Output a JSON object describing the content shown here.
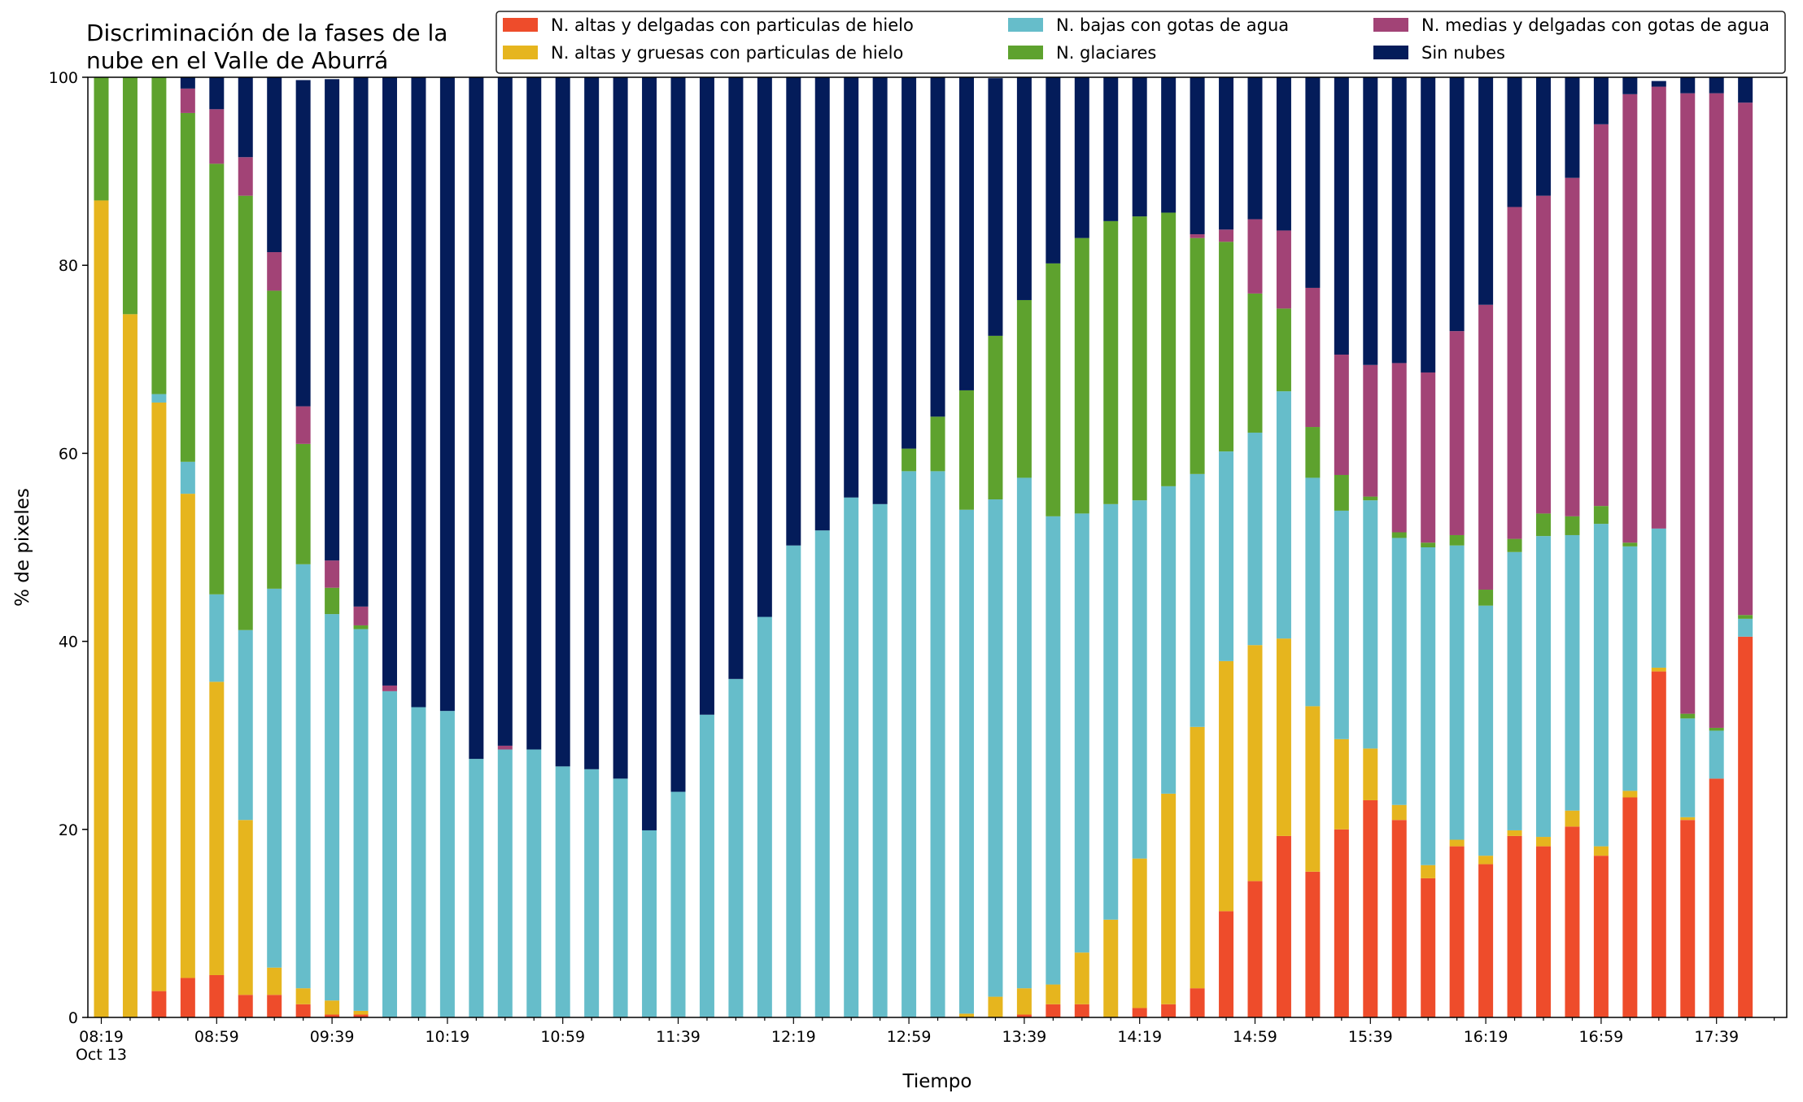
{
  "chart_data": {
    "type": "bar",
    "stacked": true,
    "title": "Discriminación de la fases de la\nnube en el Valle de Aburrá",
    "xlabel": "Tiempo",
    "ylabel": "% de pixeles",
    "ylim": [
      0,
      100
    ],
    "yticks": [
      0,
      20,
      40,
      60,
      80,
      100
    ],
    "grid": false,
    "legend_position": "top-right",
    "legend_columns": 3,
    "x_tick_labels": [
      {
        "label": "08:19\nOct 13",
        "index": 0
      },
      {
        "label": "08:59",
        "index": 4
      },
      {
        "label": "09:39",
        "index": 8
      },
      {
        "label": "10:19",
        "index": 12
      },
      {
        "label": "10:59",
        "index": 16
      },
      {
        "label": "11:39",
        "index": 20
      },
      {
        "label": "12:19",
        "index": 24
      },
      {
        "label": "12:59",
        "index": 28
      },
      {
        "label": "13:39",
        "index": 32
      },
      {
        "label": "14:19",
        "index": 36
      },
      {
        "label": "14:59",
        "index": 40
      },
      {
        "label": "15:39",
        "index": 44
      },
      {
        "label": "16:19",
        "index": 48
      },
      {
        "label": "16:59",
        "index": 52
      },
      {
        "label": "17:39",
        "index": 56
      }
    ],
    "x": [
      "08:19",
      "08:29",
      "08:39",
      "08:49",
      "08:59",
      "09:09",
      "09:19",
      "09:29",
      "09:39",
      "09:49",
      "09:59",
      "10:09",
      "10:19",
      "10:29",
      "10:39",
      "10:49",
      "10:59",
      "11:09",
      "11:19",
      "11:29",
      "11:39",
      "11:49",
      "11:59",
      "12:09",
      "12:19",
      "12:29",
      "12:39",
      "12:49",
      "12:59",
      "13:09",
      "13:19",
      "13:29",
      "13:39",
      "13:49",
      "13:59",
      "14:09",
      "14:19",
      "14:29",
      "14:39",
      "14:49",
      "14:59",
      "15:09",
      "15:19",
      "15:29",
      "15:39",
      "15:49",
      "15:59",
      "16:09",
      "16:19",
      "16:29",
      "16:39",
      "16:49",
      "16:59",
      "17:09",
      "17:19",
      "17:29",
      "17:39",
      "17:49"
    ],
    "series": [
      {
        "name": "N. altas y delgadas con particulas de hielo",
        "color": "#ee4c2b",
        "values": [
          0,
          0,
          2.8,
          4.2,
          4.5,
          2.4,
          2.4,
          1.4,
          0.3,
          0.3,
          0,
          0,
          0,
          0,
          0,
          0,
          0,
          0,
          0,
          0,
          0,
          0,
          0,
          0,
          0,
          0,
          0,
          0,
          0,
          0,
          0,
          0,
          0.3,
          1.4,
          1.4,
          0,
          1.0,
          1.4,
          3.1,
          11.3,
          14.5,
          19.3,
          15.5,
          20.0,
          23.1,
          21.0,
          14.8,
          18.2,
          16.3,
          19.3,
          18.2,
          20.3,
          17.2,
          23.4,
          36.8,
          21.0,
          25.4,
          40.5
        ]
      },
      {
        "name": "N. altas y gruesas con particulas de hielo",
        "color": "#e6b51e",
        "values": [
          86.9,
          74.8,
          62.6,
          51.5,
          31.2,
          18.6,
          2.9,
          1.7,
          1.5,
          0.4,
          0,
          0,
          0,
          0,
          0,
          0,
          0,
          0,
          0,
          0,
          0,
          0,
          0,
          0,
          0,
          0,
          0,
          0,
          0,
          0,
          0.4,
          2.2,
          2.8,
          2.1,
          5.5,
          10.4,
          15.9,
          22.4,
          27.8,
          26.6,
          25.1,
          21.0,
          17.6,
          9.6,
          5.5,
          1.6,
          1.4,
          0.7,
          0.9,
          0.6,
          1.0,
          1.7,
          1.0,
          0.7,
          0.4,
          0.3,
          0,
          0
        ]
      },
      {
        "name": "N. bajas con gotas de agua",
        "color": "#66bdca",
        "values": [
          0,
          0,
          0.9,
          3.4,
          9.3,
          20.2,
          40.3,
          45.1,
          41.1,
          40.6,
          34.7,
          33.0,
          32.6,
          27.5,
          28.5,
          28.5,
          26.7,
          26.4,
          25.4,
          19.9,
          24.0,
          32.2,
          36.0,
          42.6,
          50.2,
          51.8,
          55.3,
          54.6,
          58.1,
          58.1,
          53.6,
          52.9,
          54.3,
          49.8,
          46.7,
          44.2,
          38.1,
          32.7,
          26.9,
          22.3,
          22.6,
          26.3,
          24.3,
          24.3,
          26.4,
          28.4,
          33.8,
          31.3,
          26.6,
          29.6,
          32.0,
          29.3,
          34.3,
          26.0,
          14.8,
          10.5,
          5.1,
          1.9
        ]
      },
      {
        "name": "N. glaciares",
        "color": "#5ea22e",
        "values": [
          13.1,
          25.2,
          33.7,
          37.1,
          45.8,
          46.2,
          31.7,
          12.8,
          2.8,
          0.4,
          0,
          0,
          0,
          0,
          0,
          0,
          0,
          0,
          0,
          0,
          0,
          0,
          0,
          0,
          0,
          0,
          0,
          0,
          2.4,
          5.8,
          12.7,
          17.4,
          18.9,
          26.9,
          29.3,
          30.1,
          30.2,
          29.1,
          25.1,
          22.3,
          14.8,
          8.8,
          5.4,
          3.8,
          0.4,
          0.6,
          0.5,
          1.1,
          1.7,
          1.4,
          2.4,
          2.0,
          1.9,
          0.4,
          0,
          0.5,
          0.3,
          0.4
        ]
      },
      {
        "name": "N. medias y delgadas con gotas de agua",
        "color": "#a24376",
        "values": [
          0,
          0,
          0,
          2.6,
          5.8,
          4.1,
          4.1,
          4.0,
          2.9,
          2.0,
          0.6,
          0,
          0,
          0,
          0.4,
          0,
          0,
          0,
          0,
          0,
          0,
          0,
          0,
          0,
          0,
          0,
          0,
          0,
          0,
          0,
          0,
          0,
          0,
          0,
          0,
          0,
          0,
          0,
          0.4,
          1.3,
          7.9,
          8.3,
          14.8,
          12.8,
          14.0,
          18.0,
          18.1,
          21.7,
          30.3,
          35.3,
          33.8,
          36.0,
          40.6,
          47.7,
          47.0,
          66.0,
          67.5,
          54.5
        ]
      },
      {
        "name": "Sin nubes",
        "color": "#041c5a",
        "values": [
          0,
          0,
          0,
          1.2,
          3.4,
          8.5,
          18.6,
          34.7,
          51.2,
          56.4,
          64.7,
          67.0,
          67.4,
          72.5,
          71.1,
          71.5,
          73.3,
          73.6,
          74.6,
          80.1,
          76.0,
          67.8,
          64.0,
          57.4,
          49.8,
          48.2,
          44.7,
          45.4,
          39.5,
          36.1,
          33.3,
          27.4,
          23.7,
          19.8,
          17.1,
          15.3,
          14.8,
          14.4,
          16.7,
          16.2,
          15.1,
          16.3,
          22.4,
          29.5,
          30.6,
          30.4,
          31.9,
          27.0,
          24.2,
          13.8,
          12.6,
          10.7,
          5.0,
          1.8,
          0.6,
          1.7,
          1.7,
          2.7
        ]
      }
    ]
  }
}
